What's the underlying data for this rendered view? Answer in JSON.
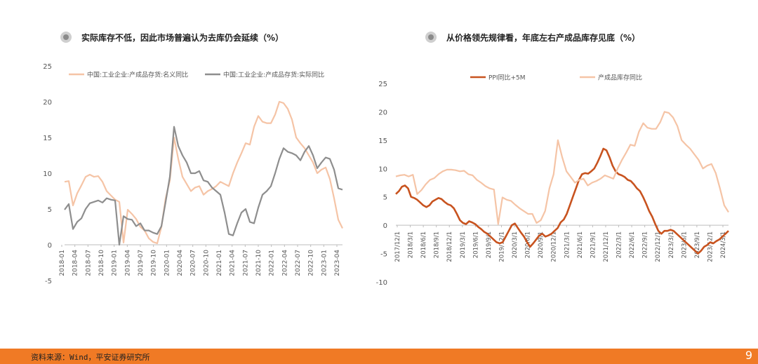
{
  "left": {
    "title": "实际库存不低，因此市场普遍认为去库仍会延续（%）",
    "chart_data": {
      "type": "line",
      "ylim": [
        -5,
        25
      ],
      "yticks": [
        -5,
        0,
        5,
        10,
        15,
        20,
        25
      ],
      "legend_position": "top",
      "x_tick_labels": [
        "2018-01",
        "2018-04",
        "2018-07",
        "2018-10",
        "2019-01",
        "2019-04",
        "2019-07",
        "2019-10",
        "2020-01",
        "2020-04",
        "2020-07",
        "2020-10",
        "2021-01",
        "2021-04",
        "2021-07",
        "2021-10",
        "2022-01",
        "2022-04",
        "2022-07",
        "2022-10",
        "2023-01",
        "2023-04"
      ],
      "series": [
        {
          "name": "中国:工业企业:产成品存货:名义同比",
          "color": "#f5c4a6",
          "values": [
            8.8,
            8.9,
            5.5,
            7.2,
            8.3,
            9.5,
            9.8,
            9.5,
            9.6,
            8.8,
            7.5,
            6.9,
            6.3,
            6.0,
            0.3,
            4.9,
            4.3,
            3.6,
            2.5,
            2.0,
            0.9,
            0.4,
            0.2,
            2.5,
            6.5,
            9.0,
            15.0,
            12.0,
            9.5,
            8.5,
            7.5,
            8.0,
            8.2,
            7.0,
            7.5,
            7.8,
            8.2,
            8.8,
            8.5,
            8.2,
            10.0,
            11.5,
            12.8,
            14.2,
            14.0,
            16.5,
            18.0,
            17.2,
            17.0,
            17.0,
            18.2,
            20.0,
            19.8,
            19.0,
            17.5,
            15.0,
            14.2,
            13.5,
            12.5,
            11.5,
            10.0,
            10.5,
            10.8,
            9.2,
            6.5,
            3.5,
            2.3
          ]
        },
        {
          "name": "中国:工业企业:产成品存货:实际同比",
          "color": "#8e8e8e",
          "values": [
            4.9,
            5.7,
            2.2,
            3.2,
            3.7,
            5.0,
            5.8,
            6.0,
            6.2,
            5.9,
            6.5,
            6.3,
            6.2,
            0.0,
            4.0,
            3.6,
            3.5,
            2.6,
            3.0,
            2.0,
            2.0,
            1.7,
            1.5,
            2.6,
            6.0,
            9.5,
            16.5,
            13.8,
            12.5,
            11.5,
            10.0,
            10.0,
            10.3,
            9.0,
            8.8,
            8.0,
            7.5,
            7.0,
            4.5,
            1.5,
            1.3,
            3.0,
            4.5,
            5.0,
            3.2,
            3.0,
            5.2,
            7.0,
            7.5,
            8.2,
            10.0,
            12.0,
            13.5,
            13.0,
            12.8,
            12.5,
            11.8,
            13.0,
            13.8,
            12.5,
            10.7,
            11.5,
            12.2,
            12.0,
            10.5,
            7.9,
            7.7
          ]
        }
      ]
    }
  },
  "right": {
    "title": "从价格领先规律看，年底左右产成品库存见底（%）",
    "chart_data": {
      "type": "line",
      "ylim": [
        -10,
        25
      ],
      "yticks": [
        -10,
        -5,
        0,
        5,
        10,
        15,
        20,
        25
      ],
      "legend_position": "top",
      "x_tick_labels": [
        "2017/12/1",
        "2018/3/1",
        "2018/6/1",
        "2018/9/1",
        "2018/12/1",
        "2019/3/1",
        "2019/6/1",
        "2019/9/1",
        "2019/12/1",
        "2020/3/1",
        "2020/6/1",
        "2020/9/1",
        "2020/12/1",
        "2021/3/1",
        "2021/6/1",
        "2021/9/1",
        "2021/12/1",
        "2022/3/1",
        "2022/6/1",
        "2022/9/1",
        "2022/12/1",
        "2023/3/1",
        "2023/6/1",
        "2023/9/1",
        "2023/12/1",
        "2024/3/1"
      ],
      "series": [
        {
          "name": "PPI同比+5M",
          "color": "#c8531f",
          "values": [
            5.5,
            6.0,
            6.8,
            7.0,
            6.5,
            5.0,
            4.8,
            4.5,
            4.0,
            3.5,
            3.2,
            3.5,
            4.2,
            4.5,
            4.8,
            4.6,
            4.1,
            3.7,
            3.5,
            3.0,
            2.0,
            0.9,
            0.4,
            0.2,
            0.7,
            0.5,
            0.2,
            -0.3,
            -0.7,
            -1.2,
            -1.5,
            -2.0,
            -2.5,
            -3.0,
            -3.2,
            -3.0,
            -2.0,
            -1.0,
            0.0,
            0.3,
            -0.5,
            -1.3,
            -2.0,
            -3.0,
            -3.8,
            -3.2,
            -2.5,
            -1.8,
            -1.5,
            -2.0,
            -1.8,
            -1.5,
            -1.0,
            -0.5,
            0.5,
            1.0,
            2.0,
            3.5,
            5.0,
            6.5,
            8.0,
            9.0,
            9.2,
            9.1,
            9.5,
            10.0,
            11.0,
            12.2,
            13.5,
            13.2,
            12.0,
            10.5,
            9.5,
            9.0,
            8.8,
            8.5,
            8.0,
            7.8,
            7.2,
            6.5,
            6.0,
            5.0,
            3.8,
            2.5,
            1.5,
            0.2,
            -1.0,
            -1.5,
            -1.0,
            -1.0,
            -0.8,
            -1.0,
            -1.5,
            -2.0,
            -2.5,
            -3.0,
            -3.5,
            -4.0,
            -4.5,
            -5.0,
            -4.5,
            -3.8,
            -3.5,
            -3.0,
            -3.2,
            -2.8,
            -2.5,
            -2.0,
            -1.5,
            -1.0
          ]
        },
        {
          "name": "产成品库存同比",
          "color": "#f5c4a6",
          "values": [
            8.6,
            8.8,
            8.9,
            8.6,
            8.9,
            5.5,
            6.2,
            7.2,
            8.0,
            8.3,
            9.0,
            9.5,
            9.8,
            9.8,
            9.7,
            9.5,
            9.6,
            9.0,
            8.8,
            8.0,
            7.5,
            6.9,
            6.5,
            6.3,
            0.2,
            4.9,
            4.5,
            4.3,
            3.6,
            3.0,
            2.5,
            2.0,
            2.0,
            0.4,
            0.9,
            2.5,
            6.5,
            9.0,
            15.0,
            12.0,
            9.5,
            8.5,
            7.5,
            8.0,
            8.2,
            7.0,
            7.5,
            7.8,
            8.2,
            8.8,
            8.5,
            8.2,
            10.0,
            11.5,
            12.8,
            14.2,
            14.0,
            16.5,
            18.0,
            17.2,
            17.0,
            17.0,
            18.2,
            20.0,
            19.8,
            19.0,
            17.5,
            15.0,
            14.2,
            13.5,
            12.5,
            11.5,
            10.0,
            10.5,
            10.8,
            9.2,
            6.5,
            3.5,
            2.3
          ]
        }
      ]
    }
  },
  "footer": {
    "source": "资料来源：Wind，平安证券研究所",
    "page": "9",
    "color": "#f07a25"
  }
}
